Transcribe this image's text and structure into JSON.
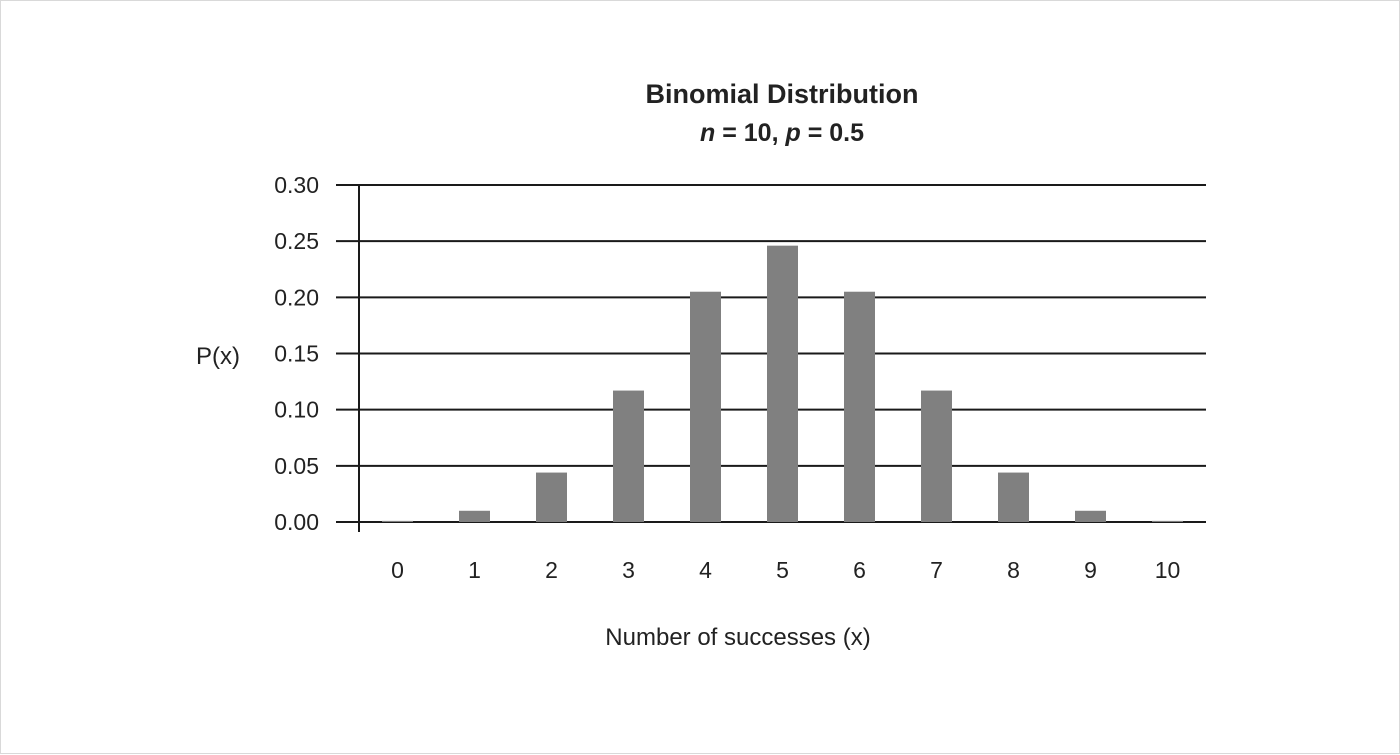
{
  "chart_data": {
    "type": "bar",
    "title": "Binomial Distribution",
    "subtitle": {
      "n_symbol": "n",
      "n_text": " = 10, ",
      "p_symbol": "p",
      "p_text": " = 0.5"
    },
    "xlabel": "Number of successes (x)",
    "ylabel": "P(x)",
    "categories": [
      "0",
      "1",
      "2",
      "3",
      "4",
      "5",
      "6",
      "7",
      "8",
      "9",
      "10"
    ],
    "values": [
      0.001,
      0.01,
      0.044,
      0.117,
      0.205,
      0.246,
      0.205,
      0.117,
      0.044,
      0.01,
      0.001
    ],
    "ylim": [
      0,
      0.3
    ],
    "yticks": [
      "0.00",
      "0.05",
      "0.10",
      "0.15",
      "0.20",
      "0.25",
      "0.30"
    ],
    "grid": true,
    "legend": "none",
    "colors": {
      "bar": "#808080",
      "grid": "#1a1a1a",
      "text": "#222222"
    }
  }
}
